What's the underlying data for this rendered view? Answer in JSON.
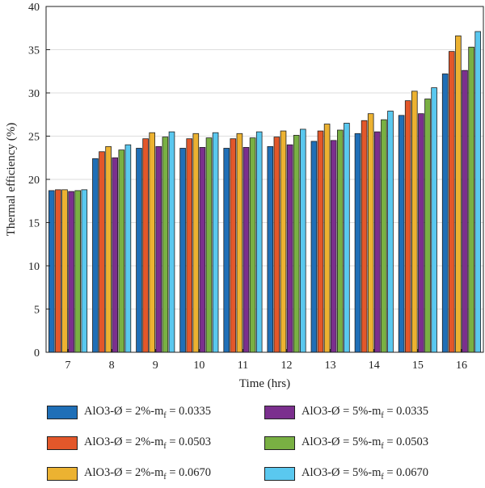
{
  "chart_data": {
    "type": "bar",
    "xlabel": "Time (hrs)",
    "ylabel": "Thermal efficiency (%)",
    "ylim": [
      0,
      40
    ],
    "yticks": [
      0,
      5,
      10,
      15,
      20,
      25,
      30,
      35,
      40
    ],
    "categories": [
      "7",
      "8",
      "9",
      "10",
      "11",
      "12",
      "13",
      "14",
      "15",
      "16"
    ],
    "legend_position": "bottom",
    "grid": true,
    "series": [
      {
        "label_main": "AlO3-Ø = 2%-m",
        "label_sub": "f",
        "label_tail": " = 0.0335",
        "color": "#1f6fb7",
        "values": [
          18.7,
          22.4,
          23.6,
          23.6,
          23.6,
          23.8,
          24.4,
          25.3,
          27.4,
          32.2
        ]
      },
      {
        "label_main": "AlO3-Ø = 2%-m",
        "label_sub": "f",
        "label_tail": " = 0.0503",
        "color": "#e3572a",
        "values": [
          18.8,
          23.2,
          24.7,
          24.7,
          24.7,
          24.9,
          25.6,
          26.8,
          29.1,
          34.8
        ]
      },
      {
        "label_main": "AlO3-Ø = 2%-m",
        "label_sub": "f",
        "label_tail": " = 0.0670",
        "color": "#ecb231",
        "values": [
          18.8,
          23.8,
          25.4,
          25.3,
          25.3,
          25.6,
          26.4,
          27.6,
          30.2,
          36.6
        ]
      },
      {
        "label_main": "AlO3-Ø = 5%-m",
        "label_sub": "f",
        "label_tail": " = 0.0335",
        "color": "#7b2f8e",
        "values": [
          18.6,
          22.5,
          23.8,
          23.7,
          23.7,
          24.0,
          24.5,
          25.5,
          27.6,
          32.6
        ]
      },
      {
        "label_main": "AlO3-Ø = 5%-m",
        "label_sub": "f",
        "label_tail": " = 0.0503",
        "color": "#79b043",
        "values": [
          18.7,
          23.4,
          24.9,
          24.8,
          24.8,
          25.1,
          25.7,
          26.9,
          29.3,
          35.3
        ]
      },
      {
        "label_main": "AlO3-Ø = 5%-m",
        "label_sub": "f",
        "label_tail": " = 0.0670",
        "color": "#5ac8ef",
        "values": [
          18.8,
          24.0,
          25.5,
          25.4,
          25.5,
          25.8,
          26.5,
          27.9,
          30.6,
          37.1
        ]
      }
    ]
  }
}
